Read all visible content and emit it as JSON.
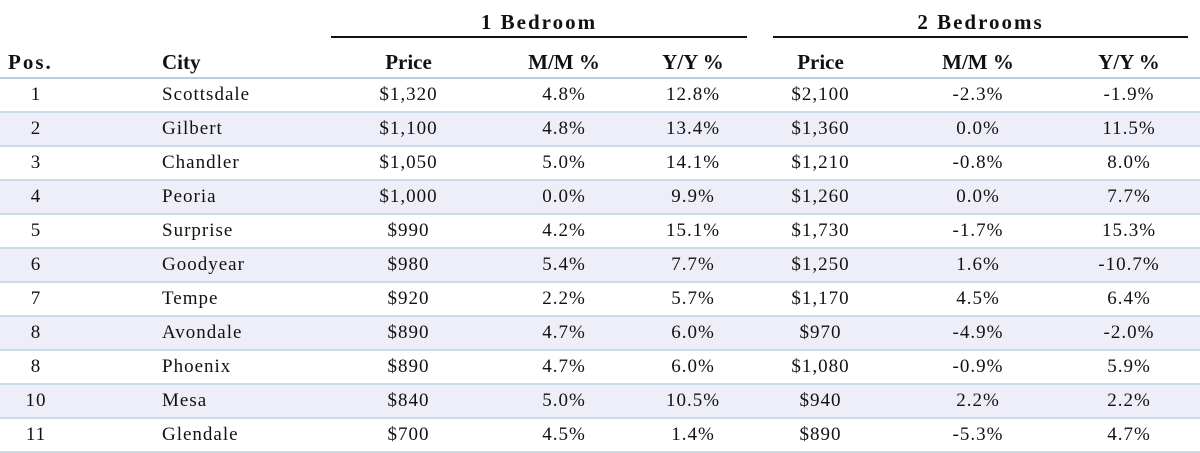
{
  "chart_data": {
    "type": "table",
    "groups": [
      "1 Bedroom",
      "2 Bedrooms"
    ],
    "columns": [
      "Pos.",
      "City",
      "Price",
      "M/M %",
      "Y/Y %",
      "Price",
      "M/M %",
      "Y/Y %"
    ],
    "rows": [
      [
        "1",
        "Scottsdale",
        "$1,320",
        "4.8%",
        "12.8%",
        "$2,100",
        "-2.3%",
        "-1.9%"
      ],
      [
        "2",
        "Gilbert",
        "$1,100",
        "4.8%",
        "13.4%",
        "$1,360",
        "0.0%",
        "11.5%"
      ],
      [
        "3",
        "Chandler",
        "$1,050",
        "5.0%",
        "14.1%",
        "$1,210",
        "-0.8%",
        "8.0%"
      ],
      [
        "4",
        "Peoria",
        "$1,000",
        "0.0%",
        "9.9%",
        "$1,260",
        "0.0%",
        "7.7%"
      ],
      [
        "5",
        "Surprise",
        "$990",
        "4.2%",
        "15.1%",
        "$1,730",
        "-1.7%",
        "15.3%"
      ],
      [
        "6",
        "Goodyear",
        "$980",
        "5.4%",
        "7.7%",
        "$1,250",
        "1.6%",
        "-10.7%"
      ],
      [
        "7",
        "Tempe",
        "$920",
        "2.2%",
        "5.7%",
        "$1,170",
        "4.5%",
        "6.4%"
      ],
      [
        "8",
        "Avondale",
        "$890",
        "4.7%",
        "6.0%",
        "$970",
        "-4.9%",
        "-2.0%"
      ],
      [
        "8",
        "Phoenix",
        "$890",
        "4.7%",
        "6.0%",
        "$1,080",
        "-0.9%",
        "5.9%"
      ],
      [
        "10",
        "Mesa",
        "$840",
        "5.0%",
        "10.5%",
        "$940",
        "2.2%",
        "2.2%"
      ],
      [
        "11",
        "Glendale",
        "$700",
        "4.5%",
        "1.4%",
        "$890",
        "-5.3%",
        "4.7%"
      ]
    ]
  },
  "colors": {
    "row_alt": "#eeeef8",
    "row_rule": "#c9dcea",
    "header_rule": "#111111"
  }
}
